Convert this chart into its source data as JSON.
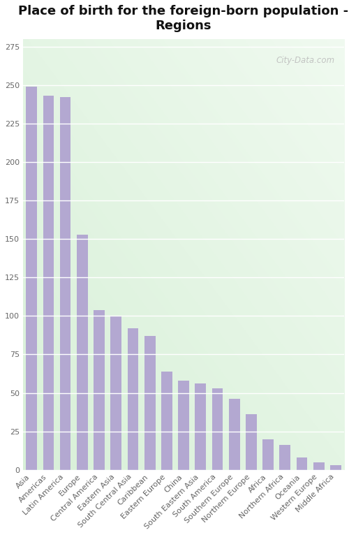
{
  "title": "Place of birth for the foreign-born population -\nRegions",
  "categories": [
    "Asia",
    "Americas",
    "Latin America",
    "Europe",
    "Central America",
    "Eastern Asia",
    "South Central Asia",
    "Caribbean",
    "Eastern Europe",
    "China",
    "South Eastern Asia",
    "South America",
    "Southern Europe",
    "Northern Europe",
    "Africa",
    "Northern Africa",
    "Oceania",
    "Western Europe",
    "Middle Africa"
  ],
  "values": [
    249,
    243,
    242,
    153,
    104,
    100,
    92,
    87,
    64,
    58,
    56,
    53,
    46,
    36,
    20,
    16,
    8,
    5,
    3
  ],
  "bar_color": "#b3a8d1",
  "plot_bg_color": "#e8f5e8",
  "fig_bg_color": "#ffffff",
  "title_fontsize": 13,
  "tick_fontsize": 8,
  "yticks": [
    0,
    25,
    50,
    75,
    100,
    125,
    150,
    175,
    200,
    225,
    250,
    275
  ],
  "ylim": [
    0,
    280
  ],
  "watermark": "City-Data.com"
}
